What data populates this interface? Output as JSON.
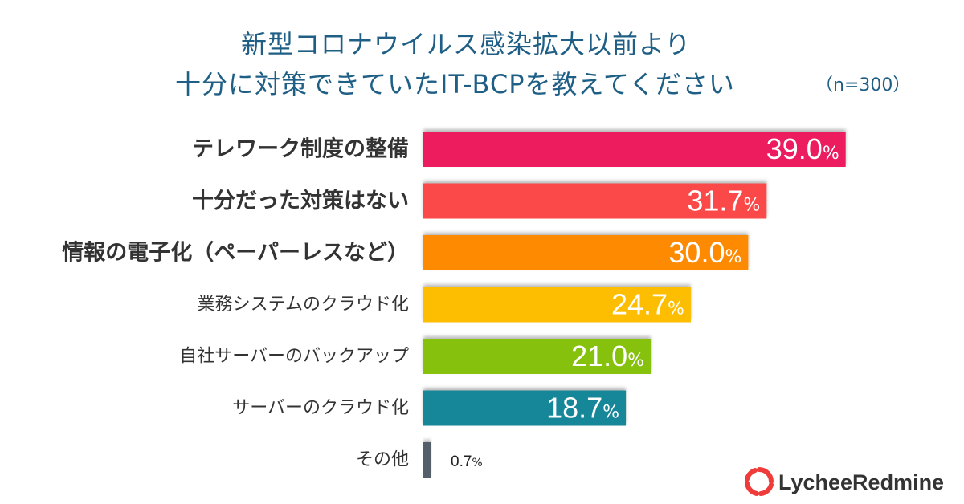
{
  "title": {
    "line1": "新型コロナウイルス感染拡大以前より",
    "line2": "十分に対策できていたIT-BCPを教えてください",
    "sample_size": "（n=300）"
  },
  "chart_data": {
    "type": "bar",
    "orientation": "horizontal",
    "categories": [
      "テレワーク制度の整備",
      "十分だった対策はない",
      "情報の電子化（ペーパーレスなど）",
      "業務システムのクラウド化",
      "自社サーバーのバックアップ",
      "サーバーのクラウド化",
      "その他"
    ],
    "values": [
      39.0,
      31.7,
      30.0,
      24.7,
      21.0,
      18.7,
      0.7
    ],
    "value_labels": [
      "39.0",
      "31.7",
      "30.0",
      "24.7",
      "21.0",
      "18.7",
      "0.7"
    ],
    "unit": "%",
    "colors": [
      "#ec1f5f",
      "#fb4a48",
      "#fd8a02",
      "#fdbd00",
      "#86c110",
      "#178699",
      "#555f6a"
    ],
    "emphasized": [
      true,
      true,
      true,
      false,
      false,
      false,
      false
    ],
    "xlim": [
      0,
      100
    ]
  },
  "logo": {
    "text": "LycheeRedmine",
    "color": "#ef3c3a"
  }
}
